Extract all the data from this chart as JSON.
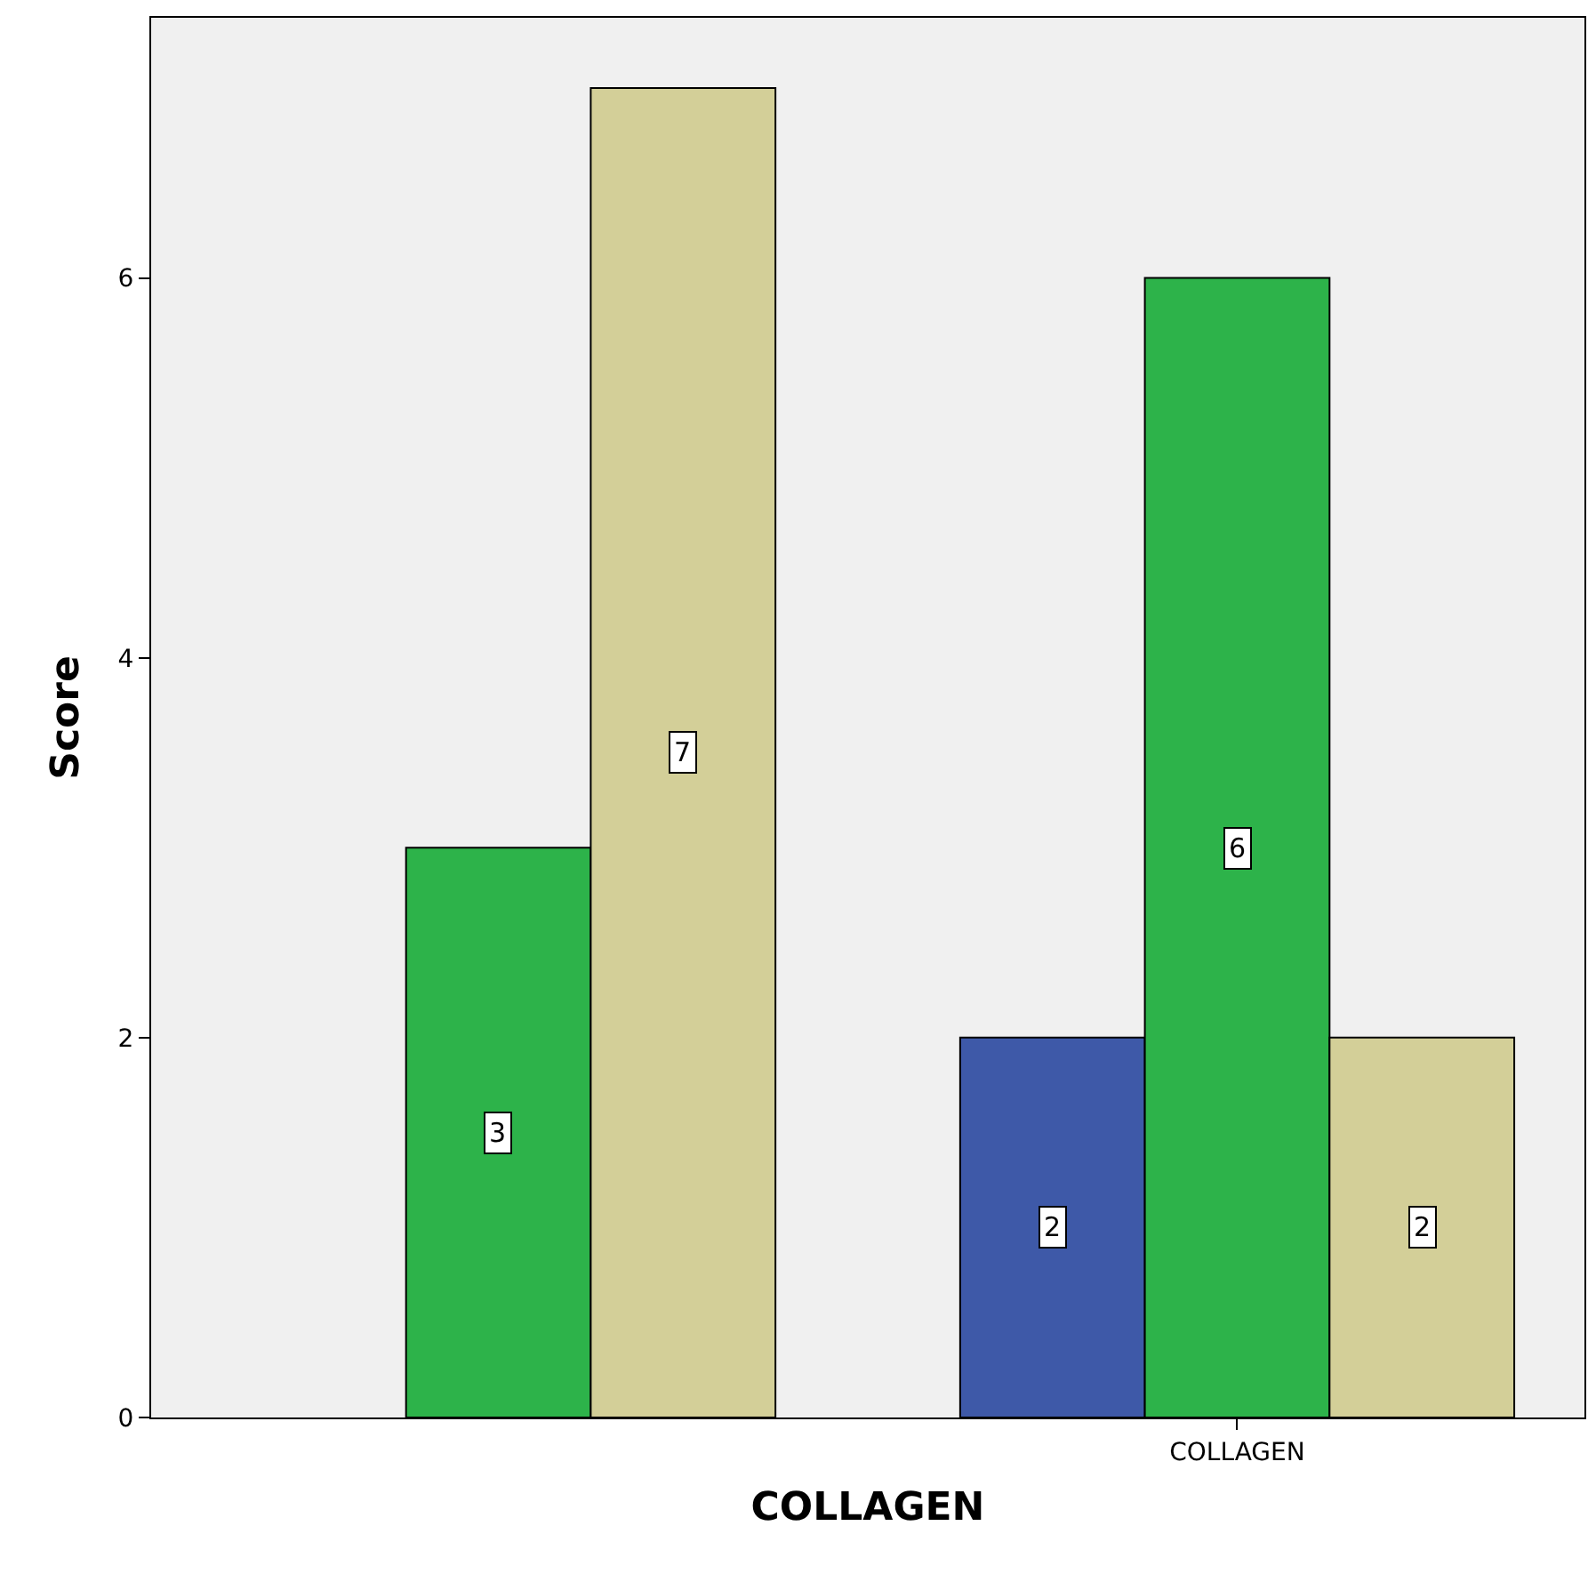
{
  "chart_data": {
    "type": "bar",
    "xlabel": "COLLAGEN",
    "ylabel": "Score",
    "categories": [
      null,
      "COLLAGEN"
    ],
    "series": [
      {
        "color": "#3e59a8",
        "values": [
          null,
          2
        ]
      },
      {
        "color": "#2db34a",
        "values": [
          3,
          6
        ]
      },
      {
        "color": "#d3cf98",
        "values": [
          7,
          2
        ]
      }
    ],
    "ylim": [
      0,
      7.37
    ],
    "yticks": [
      0,
      2,
      4,
      6
    ],
    "data_labels": true
  }
}
